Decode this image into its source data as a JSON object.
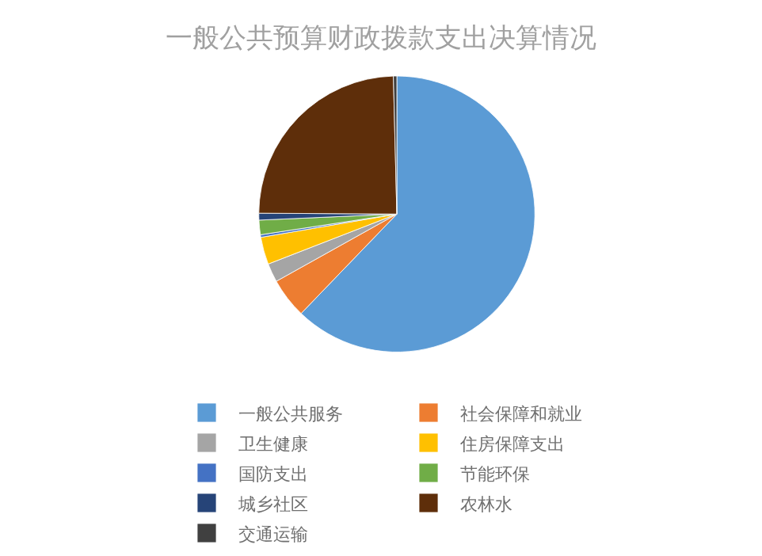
{
  "chart_data": {
    "type": "pie",
    "title": "一般公共预算财政拨款支出决算情况",
    "categories": [
      "一般公共服务",
      "社会保障和就业",
      "卫生健康",
      "住房保障支出",
      "国防支出",
      "节能环保",
      "城乡社区",
      "农林水",
      "交通运输"
    ],
    "values": [
      62.2,
      4.7,
      2.2,
      3.2,
      0.3,
      1.7,
      0.8,
      24.5,
      0.4
    ],
    "colors": [
      "#5b9bd5",
      "#ed7d31",
      "#a5a5a5",
      "#ffc000",
      "#4472c4",
      "#70ad47",
      "#264478",
      "#5e2e0a",
      "#404040"
    ],
    "legend": "bottom"
  }
}
